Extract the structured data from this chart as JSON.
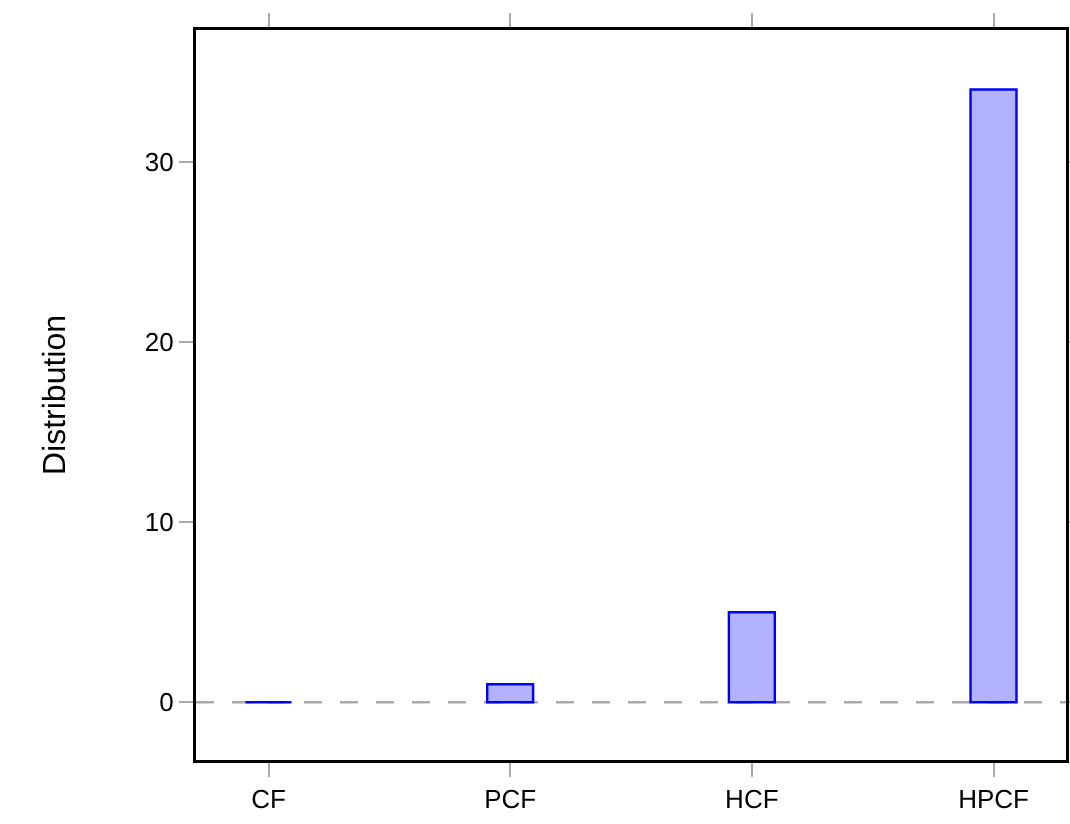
{
  "chart_data": {
    "type": "bar",
    "ylabel": "Distribution",
    "categories": [
      "CF",
      "PCF",
      "HCF",
      "HPCF"
    ],
    "series": [
      {
        "color": "#0000ff",
        "values": [
          0,
          1,
          5,
          34
        ]
      }
    ],
    "ylim": [
      -3.2,
      37.3
    ],
    "yticks": [
      0,
      10,
      20,
      30
    ],
    "ref_lines": [
      {
        "axis": "y",
        "value": 0,
        "color": "#aaaaaa",
        "line_style": "dashed"
      }
    ]
  }
}
